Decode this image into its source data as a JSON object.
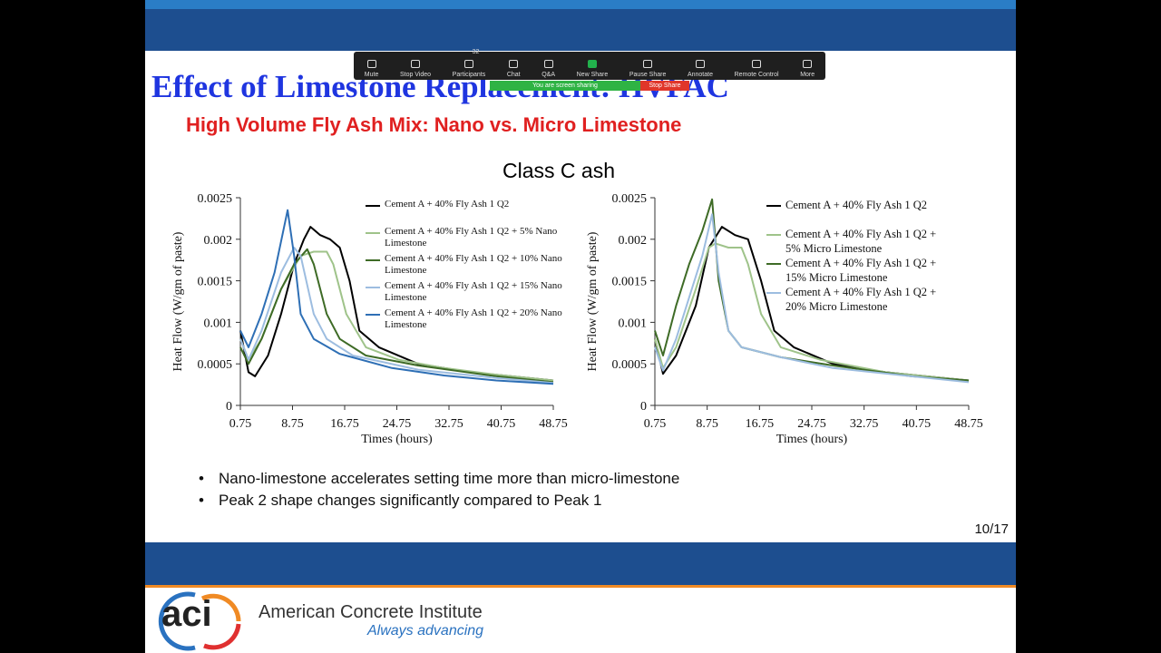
{
  "toolbar": {
    "items": [
      {
        "label": "Mute"
      },
      {
        "label": "Stop Video"
      },
      {
        "label": "Participants",
        "count": 32
      },
      {
        "label": "Chat"
      },
      {
        "label": "Q&A"
      },
      {
        "label": "New Share"
      },
      {
        "label": "Pause Share"
      },
      {
        "label": "Annotate"
      },
      {
        "label": "Remote Control"
      },
      {
        "label": "More"
      }
    ],
    "sharing_text": "You are screen sharing",
    "stop_button": "Stop Share"
  },
  "slide": {
    "title": "Effect of Limestone Replacement: HVFAC",
    "subtitle": "High Volume Fly Ash Mix: Nano vs. Micro Limestone",
    "section_title": "Class C ash",
    "bullets": [
      "Nano-limestone accelerates setting time more than micro-limestone",
      "Peak 2 shape changes significantly compared to Peak 1"
    ],
    "page_number": "10/17"
  },
  "footer": {
    "logo_text": "aci",
    "org_name": "American Concrete Institute",
    "tagline": "Always advancing"
  },
  "chart_data": [
    {
      "type": "line",
      "x_label": "Times (hours)",
      "y_label": "Heat Flow (W/gm of paste)",
      "xlim": [
        0.75,
        48.75
      ],
      "xticks": [
        0.75,
        8.75,
        16.75,
        24.75,
        32.75,
        40.75,
        48.75
      ],
      "ylim": [
        0,
        0.0025
      ],
      "yticks": [
        0,
        0.0005,
        0.001,
        0.0015,
        0.002,
        0.0025
      ],
      "series": [
        {
          "name": "Cement A + 40% Fly Ash 1 Q2",
          "color": "#000000",
          "x": [
            0.75,
            2,
            3,
            5,
            7,
            9,
            10.5,
            11.5,
            13,
            14.5,
            16,
            17.5,
            19,
            22,
            28,
            36,
            48.75
          ],
          "values": [
            0.0009,
            0.0004,
            0.00035,
            0.0006,
            0.0011,
            0.0017,
            0.002,
            0.00215,
            0.00205,
            0.002,
            0.0019,
            0.0015,
            0.0009,
            0.0007,
            0.0005,
            0.0004,
            0.0003
          ]
        },
        {
          "name": "Cement A + 40% Fly Ash 1 Q2 + 5% Nano Limestone",
          "color": "#9fc38a",
          "x": [
            0.75,
            2,
            4,
            7,
            10,
            12,
            14,
            15,
            17,
            20,
            25,
            32,
            40,
            48.75
          ],
          "values": [
            0.0008,
            0.00055,
            0.0008,
            0.0014,
            0.0018,
            0.00185,
            0.00185,
            0.0017,
            0.0011,
            0.0007,
            0.00055,
            0.00045,
            0.00037,
            0.0003
          ]
        },
        {
          "name": "Cement A + 40% Fly Ash 1 Q2 + 10% Nano Limestone",
          "color": "#3e6b26",
          "x": [
            0.75,
            2,
            4,
            7,
            9,
            11,
            12,
            14,
            16,
            20,
            28,
            40,
            48.75
          ],
          "values": [
            0.0007,
            0.0005,
            0.0008,
            0.0014,
            0.0017,
            0.00188,
            0.0017,
            0.0011,
            0.0008,
            0.0006,
            0.00048,
            0.00035,
            0.00028
          ]
        },
        {
          "name": "Cement A + 40% Fly Ash 1 Q2 + 15% Nano Limestone",
          "color": "#9dbde0",
          "x": [
            0.75,
            2,
            4,
            7,
            9,
            10,
            12,
            14,
            18,
            28,
            40,
            48.75
          ],
          "values": [
            0.0008,
            0.00055,
            0.0009,
            0.0016,
            0.0019,
            0.0018,
            0.0011,
            0.0008,
            0.0006,
            0.00043,
            0.00033,
            0.00027
          ]
        },
        {
          "name": "Cement A + 40% Fly Ash 1 Q2 + 20% Nano Limestone",
          "color": "#2e6fb5",
          "x": [
            0.75,
            2,
            4,
            6,
            8,
            9,
            10,
            12,
            16,
            24,
            32,
            40,
            48.75
          ],
          "values": [
            0.0009,
            0.0007,
            0.0011,
            0.0016,
            0.00235,
            0.0018,
            0.0011,
            0.0008,
            0.00062,
            0.00045,
            0.00036,
            0.0003,
            0.00026
          ]
        }
      ]
    },
    {
      "type": "line",
      "x_label": "Times (hours)",
      "y_label": "Heat Flow (W/gm of paste)",
      "xlim": [
        0.75,
        48.75
      ],
      "xticks": [
        0.75,
        8.75,
        16.75,
        24.75,
        32.75,
        40.75,
        48.75
      ],
      "ylim": [
        0,
        0.0025
      ],
      "yticks": [
        0,
        0.0005,
        0.001,
        0.0015,
        0.002,
        0.0025
      ],
      "series": [
        {
          "name": "Cement A + 40% Fly Ash 1 Q2",
          "color": "#000000",
          "x": [
            0.75,
            2,
            4,
            7,
            9,
            11,
            13,
            15,
            17,
            19,
            22,
            28,
            36,
            48.75
          ],
          "values": [
            0.0008,
            0.00038,
            0.0006,
            0.0012,
            0.0019,
            0.00215,
            0.00205,
            0.002,
            0.0015,
            0.0009,
            0.0007,
            0.0005,
            0.0004,
            0.0003
          ]
        },
        {
          "name": "Cement A + 40% Fly Ash 1 Q2 + 5% Micro Limestone",
          "color": "#9fc38a",
          "x": [
            0.75,
            2,
            4,
            7,
            9,
            10,
            12,
            14,
            15,
            17,
            20,
            26,
            36,
            48.75
          ],
          "values": [
            0.0008,
            0.00045,
            0.0007,
            0.0014,
            0.0019,
            0.00195,
            0.0019,
            0.0019,
            0.0017,
            0.0011,
            0.0007,
            0.00055,
            0.0004,
            0.0003
          ]
        },
        {
          "name": "Cement A + 40% Fly Ash 1 Q2 + 15% Micro Limestone",
          "color": "#3e6b26",
          "x": [
            0.75,
            2,
            4,
            6,
            8,
            9.5,
            10.5,
            12,
            14,
            20,
            28,
            40,
            48.75
          ],
          "values": [
            0.0009,
            0.0006,
            0.0012,
            0.0017,
            0.0021,
            0.00248,
            0.0015,
            0.0009,
            0.0007,
            0.00058,
            0.00048,
            0.00035,
            0.0003
          ]
        },
        {
          "name": "Cement A + 40% Fly Ash 1 Q2 + 20% Micro Limestone",
          "color": "#9dbde0",
          "x": [
            0.75,
            2,
            4,
            6,
            8,
            9.5,
            10.5,
            12,
            14,
            20,
            28,
            40,
            48.75
          ],
          "values": [
            0.0007,
            0.00042,
            0.0008,
            0.0013,
            0.0018,
            0.0023,
            0.0016,
            0.0009,
            0.0007,
            0.00058,
            0.00045,
            0.00035,
            0.00028
          ]
        }
      ]
    }
  ]
}
